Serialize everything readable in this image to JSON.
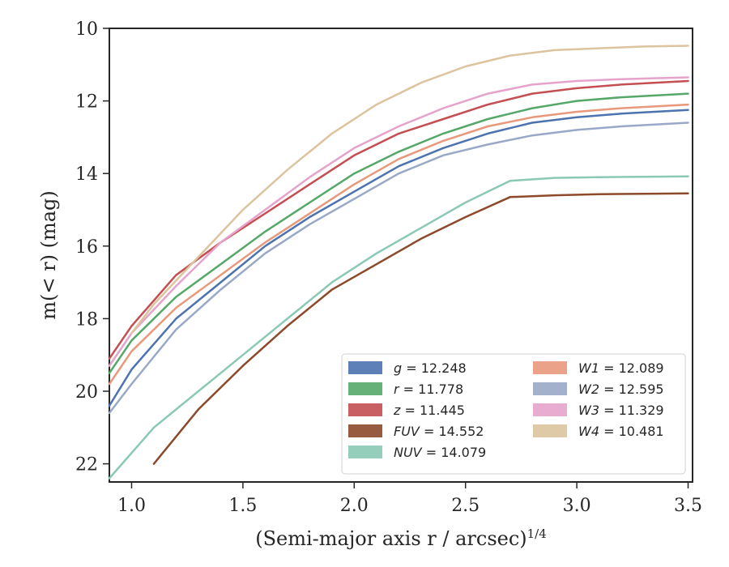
{
  "chart_data": {
    "type": "line",
    "title": "",
    "xlabel": "(Semi-major axis r / arcsec)",
    "xlabel_exponent": "1/4",
    "ylabel": "m(< r) (mag)",
    "xlim": [
      0.9,
      3.52
    ],
    "ylim": [
      22.5,
      10
    ],
    "y_inverted": true,
    "x_ticks": [
      "1.0",
      "1.5",
      "2.0",
      "2.5",
      "3.0",
      "3.5"
    ],
    "x_tick_values": [
      1.0,
      1.5,
      2.0,
      2.5,
      3.0,
      3.5
    ],
    "y_ticks": [
      "10",
      "12",
      "14",
      "16",
      "18",
      "20",
      "22"
    ],
    "y_tick_values": [
      10,
      12,
      14,
      16,
      18,
      20,
      22
    ],
    "grid": false,
    "legend_position": "bottom-right",
    "legend_columns": 2,
    "series": [
      {
        "name": "g",
        "label": "= 12.248",
        "color": "#4c72b0",
        "x": [
          0.9,
          1.0,
          1.2,
          1.4,
          1.6,
          1.8,
          2.0,
          2.2,
          2.4,
          2.6,
          2.8,
          3.0,
          3.2,
          3.5
        ],
        "y": [
          20.4,
          19.4,
          18.0,
          17.0,
          16.0,
          15.2,
          14.5,
          13.8,
          13.3,
          12.9,
          12.6,
          12.45,
          12.35,
          12.25
        ]
      },
      {
        "name": "r",
        "label": "= 11.778",
        "color": "#55a868",
        "x": [
          0.9,
          1.0,
          1.2,
          1.4,
          1.6,
          1.8,
          2.0,
          2.2,
          2.4,
          2.6,
          2.8,
          3.0,
          3.2,
          3.5
        ],
        "y": [
          19.5,
          18.6,
          17.4,
          16.5,
          15.6,
          14.8,
          14.0,
          13.4,
          12.9,
          12.5,
          12.2,
          12.0,
          11.9,
          11.8
        ]
      },
      {
        "name": "z",
        "label": "= 11.445",
        "color": "#c44e52",
        "x": [
          0.9,
          1.0,
          1.2,
          1.4,
          1.6,
          1.8,
          2.0,
          2.2,
          2.4,
          2.6,
          2.8,
          3.0,
          3.2,
          3.5
        ],
        "y": [
          19.1,
          18.2,
          16.8,
          15.9,
          15.1,
          14.3,
          13.5,
          12.9,
          12.5,
          12.1,
          11.8,
          11.65,
          11.55,
          11.45
        ]
      },
      {
        "name": "FUV",
        "label": "= 14.552",
        "color": "#8c4a2a",
        "x": [
          1.1,
          1.3,
          1.5,
          1.7,
          1.9,
          2.1,
          2.3,
          2.5,
          2.7,
          2.9,
          3.1,
          3.3,
          3.5
        ],
        "y": [
          22.0,
          20.5,
          19.3,
          18.2,
          17.2,
          16.5,
          15.8,
          15.2,
          14.65,
          14.6,
          14.57,
          14.56,
          14.55
        ]
      },
      {
        "name": "NUV",
        "label": "= 14.079",
        "color": "#8ac9b3",
        "x": [
          0.9,
          1.1,
          1.3,
          1.5,
          1.7,
          1.9,
          2.1,
          2.3,
          2.5,
          2.7,
          2.9,
          3.1,
          3.3,
          3.5
        ],
        "y": [
          22.4,
          21.0,
          20.0,
          19.0,
          18.0,
          17.0,
          16.2,
          15.5,
          14.8,
          14.2,
          14.12,
          14.1,
          14.09,
          14.08
        ]
      },
      {
        "name": "W1",
        "label": "= 12.089",
        "color": "#e8987b",
        "x": [
          0.9,
          1.0,
          1.2,
          1.4,
          1.6,
          1.8,
          2.0,
          2.2,
          2.4,
          2.6,
          2.8,
          3.0,
          3.2,
          3.5
        ],
        "y": [
          19.8,
          18.9,
          17.7,
          16.8,
          15.9,
          15.1,
          14.3,
          13.6,
          13.1,
          12.7,
          12.45,
          12.3,
          12.2,
          12.1
        ]
      },
      {
        "name": "W2",
        "label": "= 12.595",
        "color": "#9aa8c8",
        "x": [
          0.9,
          1.0,
          1.2,
          1.4,
          1.6,
          1.8,
          2.0,
          2.2,
          2.4,
          2.6,
          2.8,
          3.0,
          3.2,
          3.5
        ],
        "y": [
          20.6,
          19.8,
          18.3,
          17.2,
          16.2,
          15.4,
          14.7,
          14.0,
          13.5,
          13.2,
          12.95,
          12.8,
          12.7,
          12.6
        ]
      },
      {
        "name": "W3",
        "label": "= 11.329",
        "color": "#e5a3cc",
        "x": [
          0.9,
          1.0,
          1.2,
          1.4,
          1.6,
          1.8,
          2.0,
          2.2,
          2.4,
          2.6,
          2.8,
          3.0,
          3.2,
          3.5
        ],
        "y": [
          19.3,
          18.4,
          17.1,
          15.9,
          15.0,
          14.1,
          13.3,
          12.7,
          12.2,
          11.8,
          11.55,
          11.45,
          11.4,
          11.35
        ]
      },
      {
        "name": "W4",
        "label": "= 10.481",
        "color": "#dbc49e",
        "x": [
          1.0,
          1.1,
          1.3,
          1.5,
          1.7,
          1.9,
          2.1,
          2.3,
          2.5,
          2.7,
          2.9,
          3.1,
          3.3,
          3.5
        ],
        "y": [
          18.4,
          17.6,
          16.3,
          15.0,
          13.9,
          12.9,
          12.1,
          11.5,
          11.05,
          10.75,
          10.6,
          10.55,
          10.5,
          10.48
        ]
      }
    ]
  }
}
